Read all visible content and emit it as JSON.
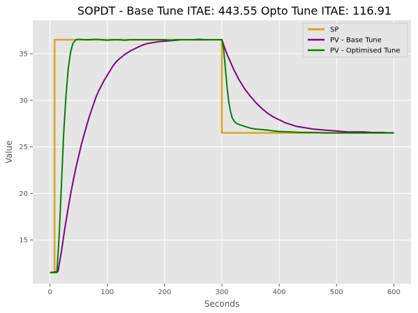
{
  "chart_data": {
    "type": "line",
    "title": "SOPDT - Base Tune ITAE: 443.55  Opto Tune ITAE: 116.91",
    "xlabel": "Seconds",
    "ylabel": "Value",
    "xlim": [
      -30,
      630
    ],
    "ylim": [
      10.3,
      38.6
    ],
    "xticks": [
      0,
      100,
      200,
      300,
      400,
      500,
      600
    ],
    "yticks": [
      15,
      20,
      25,
      30,
      35
    ],
    "grid": true,
    "legend_position": "top-right",
    "colors": {
      "background": "#e5e5e5",
      "grid": "#ffffff",
      "sp": "#DAA520",
      "base": "#800080",
      "opt": "#008000"
    },
    "series": [
      {
        "name": "SP",
        "color": "#DAA520",
        "width": 2.5,
        "x": [
          0,
          8,
          8,
          300,
          300,
          600
        ],
        "y": [
          11.5,
          11.5,
          36.5,
          36.5,
          26.5,
          26.5
        ]
      },
      {
        "name": "PV - Base Tune",
        "color": "#800080",
        "width": 2,
        "x": [
          0,
          14,
          20,
          25,
          30,
          35,
          40,
          45,
          50,
          55,
          60,
          65,
          70,
          75,
          80,
          85,
          90,
          95,
          100,
          105,
          110,
          115,
          120,
          130,
          140,
          150,
          160,
          170,
          180,
          190,
          200,
          210,
          220,
          230,
          240,
          250,
          260,
          270,
          280,
          290,
          300,
          305,
          310,
          315,
          320,
          325,
          330,
          340,
          350,
          360,
          370,
          380,
          390,
          400,
          410,
          420,
          430,
          440,
          450,
          460,
          470,
          480,
          490,
          500,
          510,
          520,
          530,
          540,
          550,
          560,
          570,
          580,
          590,
          600
        ],
        "y": [
          11.5,
          11.6,
          13.8,
          15.9,
          17.8,
          19.6,
          21.2,
          22.7,
          24.0,
          25.3,
          26.4,
          27.5,
          28.5,
          29.4,
          30.3,
          31.0,
          31.6,
          32.2,
          32.7,
          33.2,
          33.7,
          34.1,
          34.4,
          34.9,
          35.3,
          35.6,
          35.9,
          36.1,
          36.2,
          36.3,
          36.35,
          36.4,
          36.45,
          36.5,
          36.5,
          36.5,
          36.5,
          36.5,
          36.5,
          36.5,
          36.5,
          35.6,
          34.8,
          34.1,
          33.4,
          32.8,
          32.2,
          31.2,
          30.4,
          29.7,
          29.1,
          28.6,
          28.2,
          27.9,
          27.6,
          27.4,
          27.2,
          27.1,
          27.0,
          26.9,
          26.85,
          26.8,
          26.75,
          26.7,
          26.65,
          26.6,
          26.6,
          26.6,
          26.6,
          26.55,
          26.55,
          26.55,
          26.5,
          26.5
        ]
      },
      {
        "name": "PV - Optimised Tune",
        "color": "#008000",
        "width": 2,
        "x": [
          0,
          12,
          16,
          20,
          24,
          28,
          32,
          36,
          40,
          45,
          50,
          60,
          70,
          80,
          90,
          100,
          110,
          120,
          130,
          140,
          150,
          160,
          170,
          180,
          190,
          200,
          210,
          220,
          230,
          240,
          250,
          260,
          270,
          280,
          290,
          300,
          303,
          306,
          309,
          312,
          315,
          318,
          322,
          326,
          330,
          335,
          340,
          350,
          360,
          370,
          380,
          390,
          400,
          420,
          440,
          460,
          480,
          500,
          520,
          540,
          560,
          580,
          600
        ],
        "y": [
          11.5,
          11.5,
          15.5,
          21.0,
          26.5,
          30.5,
          33.5,
          35.2,
          36.1,
          36.5,
          36.55,
          36.5,
          36.5,
          36.55,
          36.5,
          36.45,
          36.5,
          36.5,
          36.45,
          36.5,
          36.5,
          36.5,
          36.5,
          36.5,
          36.5,
          36.5,
          36.45,
          36.5,
          36.5,
          36.5,
          36.5,
          36.55,
          36.5,
          36.5,
          36.5,
          36.5,
          35.5,
          33.5,
          31.4,
          29.8,
          28.8,
          28.1,
          27.7,
          27.5,
          27.4,
          27.3,
          27.2,
          27.0,
          26.9,
          26.85,
          26.8,
          26.7,
          26.65,
          26.6,
          26.55,
          26.55,
          26.5,
          26.5,
          26.5,
          26.5,
          26.5,
          26.5,
          26.5
        ]
      }
    ]
  }
}
